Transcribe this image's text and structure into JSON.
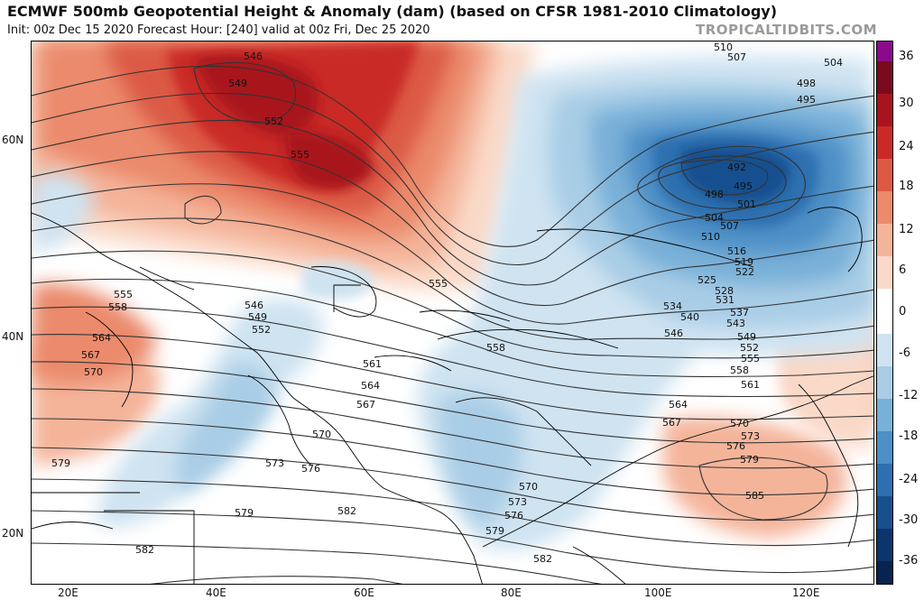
{
  "header": {
    "title": "ECMWF 500mb Geopotential Height & Anomaly (dam) (based on CFSR 1981-2010 Climatology)",
    "subtitle": "Init: 00z Dec 15 2020   Forecast Hour: [240]   valid at 00z Fri, Dec 25 2020",
    "watermark": "TROPICALTIDBITS.COM"
  },
  "axes": {
    "lat_labels": [
      "60N",
      "40N",
      "20N"
    ],
    "lon_labels": [
      "20E",
      "40E",
      "60E",
      "80E",
      "100E",
      "120E"
    ]
  },
  "colorbar": {
    "labels": [
      "36",
      "30",
      "24",
      "18",
      "12",
      "6",
      "0",
      "-6",
      "-12",
      "-18",
      "-24",
      "-30",
      "-36"
    ],
    "colors": [
      "#8b0a8b",
      "#7a0a1e",
      "#a8141e",
      "#c92a28",
      "#dc5a44",
      "#eb8a6c",
      "#f4b49a",
      "#fad9c8",
      "#ffffff",
      "#cfe3f1",
      "#a9cde6",
      "#79b0d8",
      "#4d8fc6",
      "#2d6fb0",
      "#174f8f",
      "#0b356d",
      "#08234f"
    ]
  },
  "contour_labels": [
    {
      "t": "546"
    },
    {
      "t": "549"
    },
    {
      "t": "552"
    },
    {
      "t": "555"
    },
    {
      "t": "510"
    },
    {
      "t": "507"
    },
    {
      "t": "504"
    },
    {
      "t": "498"
    },
    {
      "t": "495"
    },
    {
      "t": "492"
    },
    {
      "t": "498"
    },
    {
      "t": "495"
    },
    {
      "t": "501"
    },
    {
      "t": "504"
    },
    {
      "t": "507"
    },
    {
      "t": "510"
    },
    {
      "t": "516"
    },
    {
      "t": "519"
    },
    {
      "t": "522"
    },
    {
      "t": "525"
    },
    {
      "t": "528"
    },
    {
      "t": "531"
    },
    {
      "t": "534"
    },
    {
      "t": "537"
    },
    {
      "t": "540"
    },
    {
      "t": "543"
    },
    {
      "t": "546"
    },
    {
      "t": "549"
    },
    {
      "t": "552"
    },
    {
      "t": "555"
    },
    {
      "t": "558"
    },
    {
      "t": "561"
    },
    {
      "t": "564"
    },
    {
      "t": "567"
    },
    {
      "t": "570"
    },
    {
      "t": "573"
    },
    {
      "t": "576"
    },
    {
      "t": "579"
    },
    {
      "t": "585"
    },
    {
      "t": "555"
    },
    {
      "t": "558"
    },
    {
      "t": "561"
    },
    {
      "t": "564"
    },
    {
      "t": "567"
    },
    {
      "t": "570"
    },
    {
      "t": "573"
    },
    {
      "t": "576"
    },
    {
      "t": "579"
    },
    {
      "t": "582"
    },
    {
      "t": "582"
    },
    {
      "t": "555"
    },
    {
      "t": "558"
    },
    {
      "t": "564"
    },
    {
      "t": "567"
    },
    {
      "t": "570"
    },
    {
      "t": "579"
    },
    {
      "t": "546"
    },
    {
      "t": "549"
    },
    {
      "t": "552"
    },
    {
      "t": "570"
    },
    {
      "t": "573"
    },
    {
      "t": "576"
    },
    {
      "t": "579"
    },
    {
      "t": "582"
    }
  ]
}
